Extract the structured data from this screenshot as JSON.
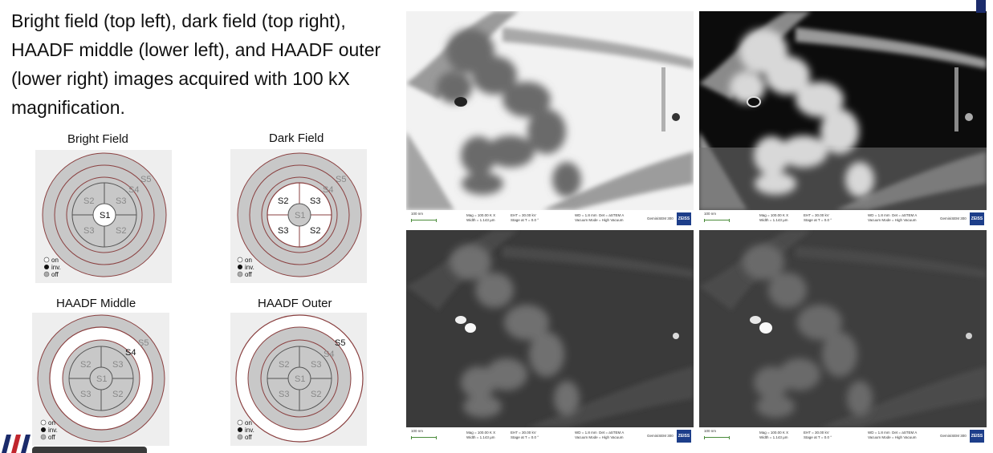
{
  "caption": {
    "lines": [
      "Bright field (top left), dark field (top right),",
      "HAADF middle (lower left), and HAADF outer",
      "(lower right) images acquired with 100 kX",
      "magnification."
    ]
  },
  "segments": {
    "s1": "S1",
    "s2": "S2",
    "s3": "S3",
    "s4": "S4",
    "s5": "S5"
  },
  "legend": {
    "on": "on",
    "inv": "inv.",
    "off": "off"
  },
  "detector_panels": [
    {
      "title": "Bright Field"
    },
    {
      "title": "Dark Field"
    },
    {
      "title": "HAADF Middle"
    },
    {
      "title": "HAADF Outer"
    }
  ],
  "sem_info": {
    "scale": "100 nm",
    "mag": "Mag = 100.00 K X",
    "width": "Width = 1.143 µm",
    "eht": "EHT = 30.00 kV",
    "stage": "Stage at T = 0.0 °",
    "wd": "WD = 1.8 mm",
    "det": "Det = aSTEM A",
    "vacuum": "Vacuum Mode = High Vacuum",
    "instrument": "GeminiSEM 300",
    "brand": "ZEISS"
  },
  "colors": {
    "ring_gray": "#c8c8c8",
    "ring_stroke": "#9a4848",
    "panel_bg": "#eeeeee",
    "zeiss_blue": "#1d3e8a"
  }
}
